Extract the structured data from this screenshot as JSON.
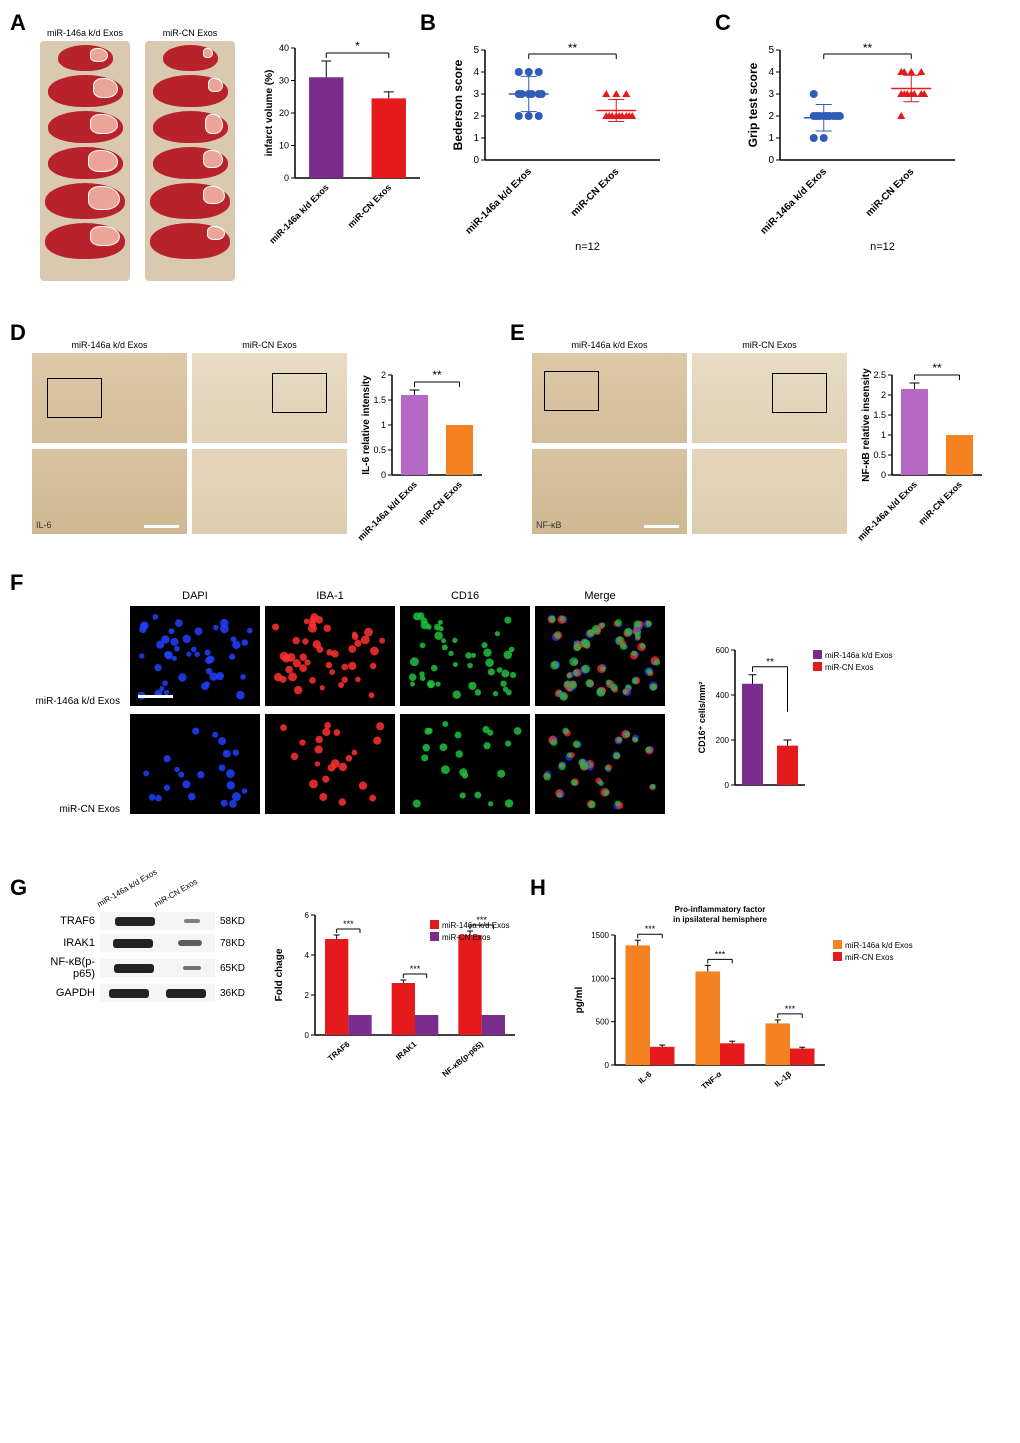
{
  "panels": {
    "A": {
      "letter": "A",
      "img_labels": [
        "miR-146a k/d Exos",
        "miR-CN Exos"
      ],
      "chart": {
        "type": "bar",
        "ylabel": "infarct volume (%)",
        "ylim": [
          0,
          40
        ],
        "yticks": [
          0,
          10,
          20,
          30,
          40
        ],
        "categories": [
          "miR-146a k/d Exos",
          "miR-CN Exos"
        ],
        "values": [
          31,
          24.5
        ],
        "errors": [
          5,
          2
        ],
        "colors": [
          "#7b2d8e",
          "#e41a1c"
        ],
        "sig": "*",
        "bar_width": 0.55
      }
    },
    "B": {
      "letter": "B",
      "chart": {
        "type": "scatter",
        "ylabel": "Bederson score",
        "ylim": [
          0,
          5
        ],
        "yticks": [
          0,
          1,
          2,
          3,
          4,
          5
        ],
        "categories": [
          "miR-146a k/d Exos",
          "miR-CN Exos"
        ],
        "series": [
          {
            "color": "#2e5cb8",
            "marker": "circle",
            "points": [
              3,
              3,
              3,
              4,
              2,
              4,
              3,
              2,
              4,
              3,
              2,
              3
            ],
            "mean": 3.0,
            "sd": 0.8
          },
          {
            "color": "#e41a1c",
            "marker": "triangle",
            "points": [
              2,
              2,
              3,
              2,
              3,
              2,
              2,
              2,
              2,
              3,
              2,
              2
            ],
            "mean": 2.25,
            "sd": 0.5
          }
        ],
        "sig": "**",
        "n_label": "n=12"
      }
    },
    "C": {
      "letter": "C",
      "chart": {
        "type": "scatter",
        "ylabel": "Grip test score",
        "ylim": [
          0,
          5
        ],
        "yticks": [
          0,
          1,
          2,
          3,
          4,
          5
        ],
        "categories": [
          "miR-146a k/d Exos",
          "miR-CN Exos"
        ],
        "series": [
          {
            "color": "#2e5cb8",
            "marker": "circle",
            "points": [
              2,
              2,
              2,
              1,
              3,
              2,
              2,
              1,
              2,
              2,
              2,
              2
            ],
            "mean": 1.92,
            "sd": 0.6
          },
          {
            "color": "#e41a1c",
            "marker": "triangle",
            "points": [
              3,
              3,
              4,
              3,
              4,
              3,
              4,
              2,
              3,
              3,
              4,
              3
            ],
            "mean": 3.25,
            "sd": 0.6
          }
        ],
        "sig": "**",
        "n_label": "n=12"
      }
    },
    "D": {
      "letter": "D",
      "img_labels": [
        "miR-146a k/d Exos",
        "miR-CN Exos"
      ],
      "stain_label": "IL-6",
      "chart": {
        "type": "bar",
        "ylabel": "IL-6 relative intensity",
        "ylim": [
          0,
          2.0
        ],
        "yticks": [
          0,
          0.5,
          1.0,
          1.5,
          2.0
        ],
        "categories": [
          "miR-146a k/d Exos",
          "miR-CN Exos"
        ],
        "values": [
          1.6,
          1.0
        ],
        "errors": [
          0.1,
          0
        ],
        "colors": [
          "#b569c4",
          "#f58220"
        ],
        "sig": "**"
      }
    },
    "E": {
      "letter": "E",
      "img_labels": [
        "miR-146a k/d Exos",
        "miR-CN Exos"
      ],
      "stain_label": "NF-κB",
      "chart": {
        "type": "bar",
        "ylabel": "NF-κB relative insensity",
        "ylim": [
          0,
          2.5
        ],
        "yticks": [
          0,
          0.5,
          1.0,
          1.5,
          2.0,
          2.5
        ],
        "categories": [
          "miR-146a k/d Exos",
          "miR-CN Exos"
        ],
        "values": [
          2.15,
          1.0
        ],
        "errors": [
          0.15,
          0
        ],
        "colors": [
          "#b569c4",
          "#f58220"
        ],
        "sig": "**"
      }
    },
    "F": {
      "letter": "F",
      "col_labels": [
        "DAPI",
        "IBA-1",
        "CD16",
        "Merge"
      ],
      "row_labels": [
        "miR-146a k/d Exos",
        "miR-CN Exos"
      ],
      "colors": {
        "DAPI": "#2040ff",
        "IBA-1": "#ff3030",
        "CD16": "#20c040"
      },
      "chart": {
        "type": "bar",
        "ylabel": "CD16⁺ cells/mm²",
        "ylim": [
          0,
          600
        ],
        "yticks": [
          0,
          200,
          400,
          600
        ],
        "categories": [
          "miR-146a k/d Exos",
          "miR-CN Exos"
        ],
        "values": [
          450,
          175
        ],
        "errors": [
          40,
          25
        ],
        "colors": [
          "#7b2d8e",
          "#e41a1c"
        ],
        "sig": "**",
        "legend": [
          "miR-146a k/d Exos",
          "miR-CN Exos"
        ]
      }
    },
    "G": {
      "letter": "G",
      "lane_labels": [
        "miR-146a k/d Exos",
        "miR-CN Exos"
      ],
      "blots": [
        {
          "name": "TRAF6",
          "kd": "58KD",
          "intensities": [
            1.0,
            0.35
          ]
        },
        {
          "name": "IRAK1",
          "kd": "78KD",
          "intensities": [
            1.0,
            0.6
          ]
        },
        {
          "name": "NF-κB(p-p65)",
          "kd": "65KD",
          "intensities": [
            1.0,
            0.45
          ]
        },
        {
          "name": "GAPDH",
          "kd": "36KD",
          "intensities": [
            1.0,
            1.0
          ]
        }
      ],
      "chart": {
        "type": "grouped-bar",
        "ylabel": "Fold chage",
        "ylim": [
          0,
          6
        ],
        "yticks": [
          0,
          2,
          4,
          6
        ],
        "categories": [
          "TRAF6",
          "IRAK1",
          "NF-κB(p-p65)"
        ],
        "series": [
          {
            "label": "miR-146a k/d Exos",
            "color": "#e41a1c",
            "values": [
              4.8,
              2.6,
              5.0
            ],
            "errors": [
              0.2,
              0.15,
              0.2
            ]
          },
          {
            "label": "miR-CN Exos",
            "color": "#7b2d8e",
            "values": [
              1.0,
              1.0,
              1.0
            ],
            "errors": [
              0,
              0,
              0
            ]
          }
        ],
        "sig": [
          "***",
          "***",
          "***"
        ]
      }
    },
    "H": {
      "letter": "H",
      "chart": {
        "type": "grouped-bar",
        "title": "Pro-inflammatory factor\nin ipsilateral hemisphere",
        "ylabel": "pg/ml",
        "ylim": [
          0,
          1500
        ],
        "yticks": [
          0,
          500,
          1000,
          1500
        ],
        "categories": [
          "IL-6",
          "TNF-α",
          "IL-1β"
        ],
        "series": [
          {
            "label": "miR-146a k/d Exos",
            "color": "#f58220",
            "values": [
              1380,
              1080,
              480
            ],
            "errors": [
              60,
              70,
              40
            ]
          },
          {
            "label": "miR-CN Exos",
            "color": "#e41a1c",
            "values": [
              210,
              250,
              190
            ],
            "errors": [
              20,
              25,
              15
            ]
          }
        ],
        "sig": [
          "***",
          "***",
          "***"
        ]
      }
    }
  }
}
